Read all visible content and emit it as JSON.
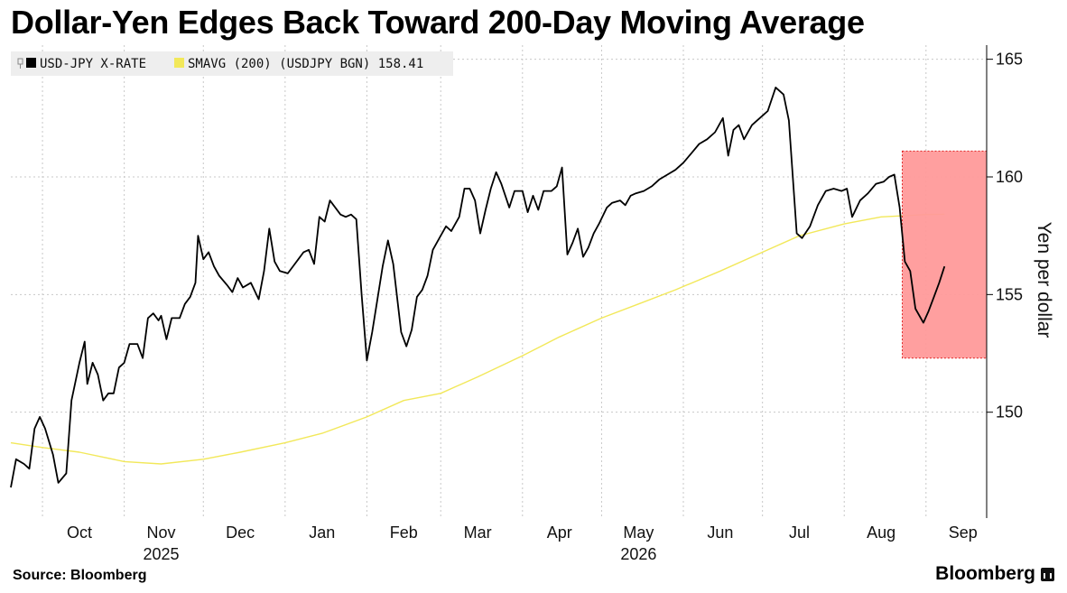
{
  "title": "Dollar-Yen Edges Back Toward 200-Day Moving Average",
  "source": "Source: Bloomberg",
  "brand": "Bloomberg",
  "colors": {
    "usdjpy": "#000000",
    "sma200": "#f2e85a",
    "highlight_fill": "#ff9a9a",
    "highlight_border": "#e02424",
    "grid": "#c8c8c8"
  },
  "chart_data": {
    "type": "line",
    "title": "Dollar-Yen Edges Back Toward 200-Day Moving Average",
    "ylabel": "Yen per dollar",
    "ylim": [
      145.5,
      165.6
    ],
    "yticks": [
      150,
      155,
      160,
      165
    ],
    "y_axis_position": "right",
    "grid": true,
    "legend_position": "top-left",
    "xlim": [
      "2025-09-19",
      "2026-09-24"
    ],
    "x_ticks": [
      {
        "date": "2025-10-15",
        "label": "Oct"
      },
      {
        "date": "2025-11-15",
        "label": "Nov"
      },
      {
        "date": "2025-12-15",
        "label": "Dec"
      },
      {
        "date": "2026-01-15",
        "label": "Jan"
      },
      {
        "date": "2026-02-15",
        "label": "Feb"
      },
      {
        "date": "2026-03-15",
        "label": "Mar"
      },
      {
        "date": "2026-04-15",
        "label": "Apr"
      },
      {
        "date": "2026-05-15",
        "label": "May"
      },
      {
        "date": "2026-06-15",
        "label": "Jun"
      },
      {
        "date": "2026-07-15",
        "label": "Jul"
      },
      {
        "date": "2026-08-15",
        "label": "Aug"
      },
      {
        "date": "2026-09-15",
        "label": "Sep"
      }
    ],
    "year_labels": [
      {
        "date": "2025-11-15",
        "label": "2025"
      },
      {
        "date": "2026-05-15",
        "label": "2026"
      }
    ],
    "gridline_dates": [
      "2025-10-01",
      "2025-11-01",
      "2025-12-01",
      "2026-01-01",
      "2026-02-01",
      "2026-03-01",
      "2026-04-01",
      "2026-05-01",
      "2026-06-01",
      "2026-07-01",
      "2026-08-01",
      "2026-09-01"
    ],
    "highlight": {
      "x": [
        "2026-08-23",
        "2026-09-24"
      ],
      "y": [
        152.3,
        161.1
      ]
    },
    "series": [
      {
        "name": "USD-JPY X-RATE",
        "legend_label": "USD-JPY X-RATE",
        "points": [
          [
            "2025-09-19",
            146.8
          ],
          [
            "2025-09-21",
            148.0
          ],
          [
            "2025-09-24",
            147.8
          ],
          [
            "2025-09-26",
            147.6
          ],
          [
            "2025-09-28",
            149.3
          ],
          [
            "2025-09-30",
            149.8
          ],
          [
            "2025-10-02",
            149.3
          ],
          [
            "2025-10-05",
            148.2
          ],
          [
            "2025-10-07",
            147.0
          ],
          [
            "2025-10-10",
            147.4
          ],
          [
            "2025-10-12",
            150.5
          ],
          [
            "2025-10-15",
            152.1
          ],
          [
            "2025-10-17",
            153.0
          ],
          [
            "2025-10-18",
            151.2
          ],
          [
            "2025-10-20",
            152.1
          ],
          [
            "2025-10-22",
            151.6
          ],
          [
            "2025-10-24",
            150.5
          ],
          [
            "2025-10-26",
            150.8
          ],
          [
            "2025-10-28",
            150.8
          ],
          [
            "2025-10-30",
            151.9
          ],
          [
            "2025-11-01",
            152.1
          ],
          [
            "2025-11-03",
            152.9
          ],
          [
            "2025-11-06",
            152.9
          ],
          [
            "2025-11-08",
            152.3
          ],
          [
            "2025-11-10",
            154.0
          ],
          [
            "2025-11-12",
            154.2
          ],
          [
            "2025-11-14",
            153.9
          ],
          [
            "2025-11-15",
            154.1
          ],
          [
            "2025-11-17",
            153.1
          ],
          [
            "2025-11-19",
            154.0
          ],
          [
            "2025-11-22",
            154.0
          ],
          [
            "2025-11-24",
            154.6
          ],
          [
            "2025-11-26",
            154.9
          ],
          [
            "2025-11-28",
            155.5
          ],
          [
            "2025-11-29",
            157.5
          ],
          [
            "2025-12-01",
            156.5
          ],
          [
            "2025-12-03",
            156.8
          ],
          [
            "2025-12-05",
            156.2
          ],
          [
            "2025-12-07",
            155.8
          ],
          [
            "2025-12-10",
            155.4
          ],
          [
            "2025-12-12",
            155.1
          ],
          [
            "2025-12-14",
            155.7
          ],
          [
            "2025-12-16",
            155.3
          ],
          [
            "2025-12-19",
            155.5
          ],
          [
            "2025-12-22",
            154.8
          ],
          [
            "2025-12-24",
            156.0
          ],
          [
            "2025-12-26",
            157.8
          ],
          [
            "2025-12-28",
            156.4
          ],
          [
            "2025-12-30",
            156.0
          ],
          [
            "2026-01-02",
            155.9
          ],
          [
            "2026-01-04",
            156.2
          ],
          [
            "2026-01-06",
            156.5
          ],
          [
            "2026-01-08",
            156.8
          ],
          [
            "2026-01-10",
            156.9
          ],
          [
            "2026-01-12",
            156.3
          ],
          [
            "2026-01-14",
            158.3
          ],
          [
            "2026-01-16",
            158.1
          ],
          [
            "2026-01-18",
            159.0
          ],
          [
            "2026-01-20",
            158.7
          ],
          [
            "2026-01-22",
            158.4
          ],
          [
            "2026-01-24",
            158.3
          ],
          [
            "2026-01-26",
            158.4
          ],
          [
            "2026-01-28",
            158.2
          ],
          [
            "2026-01-30",
            155.0
          ],
          [
            "2026-02-01",
            152.2
          ],
          [
            "2026-02-03",
            153.4
          ],
          [
            "2026-02-05",
            154.8
          ],
          [
            "2026-02-07",
            156.2
          ],
          [
            "2026-02-09",
            157.3
          ],
          [
            "2026-02-11",
            156.3
          ],
          [
            "2026-02-14",
            153.4
          ],
          [
            "2026-02-16",
            152.8
          ],
          [
            "2026-02-18",
            153.5
          ],
          [
            "2026-02-20",
            154.9
          ],
          [
            "2026-02-22",
            155.2
          ],
          [
            "2026-02-24",
            155.8
          ],
          [
            "2026-02-26",
            156.9
          ],
          [
            "2026-03-01",
            157.5
          ],
          [
            "2026-03-03",
            157.9
          ],
          [
            "2026-03-05",
            157.7
          ],
          [
            "2026-03-08",
            158.3
          ],
          [
            "2026-03-10",
            159.5
          ],
          [
            "2026-03-12",
            159.5
          ],
          [
            "2026-03-14",
            159.0
          ],
          [
            "2026-03-16",
            157.6
          ],
          [
            "2026-03-18",
            158.6
          ],
          [
            "2026-03-20",
            159.5
          ],
          [
            "2026-03-22",
            160.2
          ],
          [
            "2026-03-24",
            159.7
          ],
          [
            "2026-03-27",
            158.7
          ],
          [
            "2026-03-29",
            159.4
          ],
          [
            "2026-04-01",
            159.4
          ],
          [
            "2026-04-03",
            158.5
          ],
          [
            "2026-04-05",
            159.2
          ],
          [
            "2026-04-07",
            158.6
          ],
          [
            "2026-04-09",
            159.4
          ],
          [
            "2026-04-12",
            159.4
          ],
          [
            "2026-04-14",
            159.6
          ],
          [
            "2026-04-16",
            160.4
          ],
          [
            "2026-04-18",
            156.7
          ],
          [
            "2026-04-20",
            157.2
          ],
          [
            "2026-04-22",
            157.8
          ],
          [
            "2026-04-24",
            156.6
          ],
          [
            "2026-04-26",
            157.0
          ],
          [
            "2026-04-28",
            157.6
          ],
          [
            "2026-04-30",
            158.0
          ],
          [
            "2026-05-03",
            158.7
          ],
          [
            "2026-05-05",
            158.9
          ],
          [
            "2026-05-08",
            159.0
          ],
          [
            "2026-05-10",
            158.8
          ],
          [
            "2026-05-12",
            159.2
          ],
          [
            "2026-05-14",
            159.3
          ],
          [
            "2026-05-17",
            159.4
          ],
          [
            "2026-05-20",
            159.6
          ],
          [
            "2026-05-23",
            159.9
          ],
          [
            "2026-05-26",
            160.1
          ],
          [
            "2026-05-29",
            160.3
          ],
          [
            "2026-06-01",
            160.6
          ],
          [
            "2026-06-04",
            161.0
          ],
          [
            "2026-06-07",
            161.4
          ],
          [
            "2026-06-10",
            161.6
          ],
          [
            "2026-06-13",
            161.9
          ],
          [
            "2026-06-16",
            162.5
          ],
          [
            "2026-06-18",
            160.9
          ],
          [
            "2026-06-20",
            162.0
          ],
          [
            "2026-06-22",
            162.2
          ],
          [
            "2026-06-24",
            161.6
          ],
          [
            "2026-06-27",
            162.2
          ],
          [
            "2026-06-30",
            162.5
          ],
          [
            "2026-07-03",
            162.8
          ],
          [
            "2026-07-06",
            163.8
          ],
          [
            "2026-07-09",
            163.5
          ],
          [
            "2026-07-11",
            162.4
          ],
          [
            "2026-07-14",
            157.6
          ],
          [
            "2026-07-16",
            157.4
          ],
          [
            "2026-07-19",
            157.9
          ],
          [
            "2026-07-22",
            158.8
          ],
          [
            "2026-07-25",
            159.4
          ],
          [
            "2026-07-28",
            159.5
          ],
          [
            "2026-07-31",
            159.4
          ],
          [
            "2026-08-02",
            159.5
          ],
          [
            "2026-08-04",
            158.3
          ],
          [
            "2026-08-07",
            159.0
          ],
          [
            "2026-08-10",
            159.3
          ],
          [
            "2026-08-13",
            159.7
          ],
          [
            "2026-08-16",
            159.8
          ],
          [
            "2026-08-18",
            160.0
          ],
          [
            "2026-08-20",
            160.1
          ],
          [
            "2026-08-22",
            158.7
          ],
          [
            "2026-08-24",
            156.4
          ],
          [
            "2026-08-26",
            156.0
          ],
          [
            "2026-08-28",
            154.4
          ],
          [
            "2026-08-31",
            153.8
          ],
          [
            "2026-09-02",
            154.3
          ],
          [
            "2026-09-04",
            154.9
          ],
          [
            "2026-09-06",
            155.5
          ],
          [
            "2026-09-08",
            156.2
          ]
        ]
      },
      {
        "name": "SMAVG (200) (USDJPY BGN)",
        "legend_label": "SMAVG (200) (USDJPY BGN) 158.41",
        "last_value": "158.41",
        "points": [
          [
            "2025-09-19",
            148.7
          ],
          [
            "2025-10-01",
            148.5
          ],
          [
            "2025-10-15",
            148.3
          ],
          [
            "2025-11-01",
            147.9
          ],
          [
            "2025-11-15",
            147.8
          ],
          [
            "2025-12-01",
            148.0
          ],
          [
            "2025-12-15",
            148.3
          ],
          [
            "2026-01-01",
            148.7
          ],
          [
            "2026-01-15",
            149.1
          ],
          [
            "2026-02-01",
            149.8
          ],
          [
            "2026-02-15",
            150.5
          ],
          [
            "2026-03-01",
            150.8
          ],
          [
            "2026-03-15",
            151.5
          ],
          [
            "2026-04-01",
            152.4
          ],
          [
            "2026-04-15",
            153.2
          ],
          [
            "2026-05-01",
            154.0
          ],
          [
            "2026-05-15",
            154.6
          ],
          [
            "2026-05-29",
            155.2
          ],
          [
            "2026-06-15",
            156.0
          ],
          [
            "2026-07-01",
            156.8
          ],
          [
            "2026-07-15",
            157.5
          ],
          [
            "2026-08-01",
            158.0
          ],
          [
            "2026-08-15",
            158.3
          ],
          [
            "2026-09-01",
            158.4
          ],
          [
            "2026-09-08",
            158.41
          ]
        ]
      }
    ]
  }
}
